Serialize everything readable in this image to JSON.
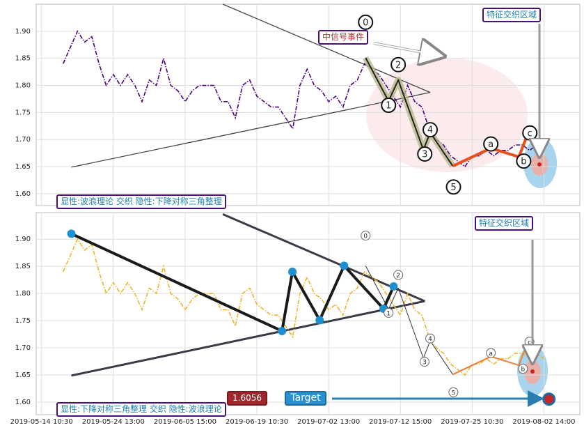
{
  "chart_data": [
    {
      "type": "line",
      "series": [
        {
          "color": "#4b0082",
          "x": [
            6,
            8,
            10,
            12,
            14,
            16,
            18,
            20,
            22,
            24,
            26,
            28,
            30,
            32,
            34,
            36,
            38,
            40,
            42,
            44,
            46,
            48,
            50,
            52,
            54,
            56,
            58,
            60,
            62,
            64,
            66,
            68,
            70,
            72,
            74,
            76,
            78,
            80,
            82,
            84,
            86,
            88,
            90,
            92,
            94,
            96,
            98,
            100,
            102,
            104,
            106,
            108,
            110,
            112,
            114,
            116,
            118,
            120,
            122,
            124,
            126,
            128,
            130,
            132,
            134,
            136,
            138,
            140
          ],
          "values": [
            1.84,
            1.87,
            1.9,
            1.88,
            1.89,
            1.84,
            1.8,
            1.82,
            1.8,
            1.82,
            1.8,
            1.77,
            1.81,
            1.8,
            1.85,
            1.8,
            1.79,
            1.77,
            1.79,
            1.8,
            1.8,
            1.8,
            1.77,
            1.77,
            1.74,
            1.8,
            1.81,
            1.78,
            1.77,
            1.76,
            1.76,
            1.74,
            1.72,
            1.8,
            1.83,
            1.8,
            1.79,
            1.77,
            1.78,
            1.76,
            1.8,
            1.81,
            1.84,
            1.83,
            1.82,
            1.8,
            1.78,
            1.76,
            1.8,
            1.77,
            1.76,
            1.72,
            1.7,
            1.69,
            1.67,
            1.66,
            1.65,
            1.67,
            1.67,
            1.68,
            1.67,
            1.68,
            1.68,
            1.69,
            1.69,
            1.68,
            1.69,
            1.68
          ]
        }
      ],
      "ylim": [
        1.578,
        1.95
      ],
      "yticks": [
        1.6,
        1.65,
        1.7,
        1.75,
        1.8,
        1.85,
        1.9
      ],
      "ytick_labels": [
        "1.60",
        "1.65",
        "1.70",
        "1.75",
        "1.80",
        "1.85",
        "1.90"
      ],
      "grid": true,
      "trendlines": [
        [
          50.5,
          1.95,
          108.3,
          1.787
        ],
        [
          8.3,
          1.649,
          108.3,
          1.787
        ]
      ],
      "waves": {
        "labels": [
          "0",
          "1",
          "2",
          "3",
          "4",
          "5",
          "a",
          "b",
          "c"
        ],
        "x": [
          90.3,
          96.7,
          99.4,
          106.4,
          108.3,
          114.6,
          125.2,
          133,
          135.3
        ],
        "y": [
          1.851,
          1.771,
          1.81,
          1.681,
          1.713,
          1.651,
          1.684,
          1.668,
          1.707
        ]
      },
      "annotations": [
        "中信号事件",
        "特征交织区域",
        "显性:波浪理论 交织 隐性:下降对称三角整理"
      ]
    },
    {
      "type": "line",
      "series": [
        {
          "color": "#f0b429",
          "x": [
            6,
            8,
            10,
            12,
            14,
            16,
            18,
            20,
            22,
            24,
            26,
            28,
            30,
            32,
            34,
            36,
            38,
            40,
            42,
            44,
            46,
            48,
            50,
            52,
            54,
            56,
            58,
            60,
            62,
            64,
            66,
            68,
            70,
            72,
            74,
            76,
            78,
            80,
            82,
            84,
            86,
            88,
            90,
            92,
            94,
            96,
            98,
            100,
            102,
            104,
            106,
            108,
            110,
            112,
            114,
            116,
            118,
            120,
            122,
            124,
            126,
            128,
            130,
            132,
            134,
            136,
            138,
            140
          ],
          "values": [
            1.84,
            1.87,
            1.9,
            1.88,
            1.89,
            1.84,
            1.8,
            1.82,
            1.8,
            1.82,
            1.8,
            1.77,
            1.81,
            1.8,
            1.85,
            1.8,
            1.79,
            1.77,
            1.79,
            1.8,
            1.8,
            1.8,
            1.77,
            1.77,
            1.74,
            1.8,
            1.81,
            1.78,
            1.77,
            1.76,
            1.76,
            1.74,
            1.72,
            1.8,
            1.83,
            1.8,
            1.79,
            1.77,
            1.78,
            1.76,
            1.8,
            1.81,
            1.84,
            1.83,
            1.82,
            1.8,
            1.78,
            1.76,
            1.8,
            1.77,
            1.76,
            1.72,
            1.7,
            1.69,
            1.67,
            1.66,
            1.65,
            1.67,
            1.67,
            1.68,
            1.67,
            1.68,
            1.68,
            1.69,
            1.69,
            1.68,
            1.69,
            1.68
          ]
        }
      ],
      "ylim": [
        1.577,
        1.949
      ],
      "yticks": [
        1.6,
        1.65,
        1.7,
        1.75,
        1.8,
        1.85,
        1.9
      ],
      "ytick_labels": [
        "1.60",
        "1.65",
        "1.70",
        "1.75",
        "1.80",
        "1.85",
        "1.90"
      ],
      "xlim": [
        -1.5,
        150
      ],
      "xticks": [
        {
          "value": 0,
          "label": "2019-05-14 10:30"
        },
        {
          "value": 20,
          "label": "2019-05-24 13:00"
        },
        {
          "value": 40,
          "label": "2019-06-05 15:00"
        },
        {
          "value": 60,
          "label": "2019-06-19 10:30"
        },
        {
          "value": 80,
          "label": "2019-07-02 13:00"
        },
        {
          "value": 100,
          "label": "2019-07-12 15:00"
        },
        {
          "value": 120,
          "label": "2019-07-25 10:30"
        },
        {
          "value": 140,
          "label": "2019-08-02 14:00"
        }
      ],
      "grid": true,
      "trendlines": [
        [
          50.5,
          1.946,
          106.8,
          1.786
        ],
        [
          8.3,
          1.649,
          106.8,
          1.786
        ]
      ],
      "pivots": {
        "x": [
          8.3,
          67,
          69.9,
          77.5,
          84.3,
          95.3,
          98.1
        ],
        "y": [
          1.91,
          1.731,
          1.84,
          1.751,
          1.851,
          1.772,
          1.813
        ]
      },
      "waves": {
        "labels": [
          "0",
          "1",
          "2",
          "3",
          "4",
          "5",
          "a",
          "b",
          "c"
        ],
        "x": [
          90.3,
          96.7,
          99.4,
          106.4,
          108.3,
          114.6,
          125.2,
          133,
          135.3
        ],
        "y": [
          1.851,
          1.771,
          1.81,
          1.681,
          1.713,
          1.651,
          1.684,
          1.668,
          1.707
        ]
      },
      "target": {
        "label": "Target",
        "value": 1.6056,
        "x": 141.4
      },
      "annotations": [
        "特征交织区域",
        "显性:下降对称三角整理 交织 隐性:波浪理论"
      ]
    }
  ]
}
